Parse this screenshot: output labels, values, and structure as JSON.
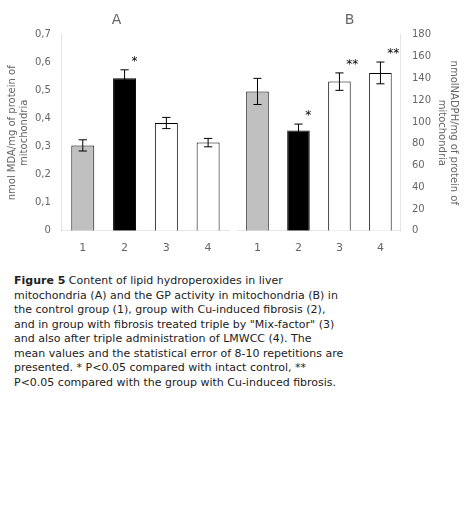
{
  "chart_data": [
    {
      "type": "bar",
      "title": "A",
      "categories": [
        "1",
        "2",
        "3",
        "4"
      ],
      "values": [
        0.305,
        0.545,
        0.385,
        0.315
      ],
      "errors": [
        0.02,
        0.03,
        0.02,
        0.015
      ],
      "colors": [
        "#c0c0c0",
        "#000000",
        "#ffffff",
        "#ffffff"
      ],
      "significance": [
        null,
        "*",
        null,
        null
      ],
      "ylabel": "nmol MDA/mg of protein of\nmitochondria",
      "ylim": [
        0,
        0.7
      ],
      "yticks": [
        0,
        {
          "value": 0.1,
          "label": "0,1"
        },
        {
          "value": 0.2,
          "label": "0,2"
        },
        {
          "value": 0.3,
          "label": "0,3"
        },
        {
          "value": 0.4,
          "label": "0,4"
        },
        {
          "value": 0.5,
          "label": "0,5"
        },
        {
          "value": 0.6,
          "label": "0,6"
        },
        {
          "value": 0.7,
          "label": "0,7"
        }
      ],
      "grid": false
    },
    {
      "type": "bar",
      "title": "B",
      "categories": [
        "1",
        "2",
        "3",
        "4"
      ],
      "values": [
        128.0,
        92.0,
        137.0,
        145.0
      ],
      "errors": [
        12.0,
        6.0,
        8.0,
        10.0
      ],
      "colors": [
        "#c0c0c0",
        "#000000",
        "#ffffff",
        "#ffffff"
      ],
      "significance": [
        null,
        "*",
        "**",
        "**"
      ],
      "ylabel": "nmolNADPH/mg of protein of\nmitochondria",
      "ylim": [
        0,
        180
      ],
      "yticks": [
        0,
        20,
        40,
        60,
        80,
        100,
        120,
        140,
        160,
        180
      ],
      "grid": false
    }
  ],
  "caption": {
    "title": "Figure 5",
    "text": " Content of lipid hydroperoxides in liver\nmitochondria (A) and the GP activity in mitochondria (B) in\nthe control group (1), group with Cu-induced fibrosis (2),\nand in group with fibrosis treated triple by \"Mix-factor\" (3)\nand also after triple administration of LMWCC (4). The\nmean values and the statistical error of 8-10 repetitions are\npresented. * P<0.05 compared with intact control, **\nP<0.05 compared with the group with Cu-induced fibrosis."
  }
}
